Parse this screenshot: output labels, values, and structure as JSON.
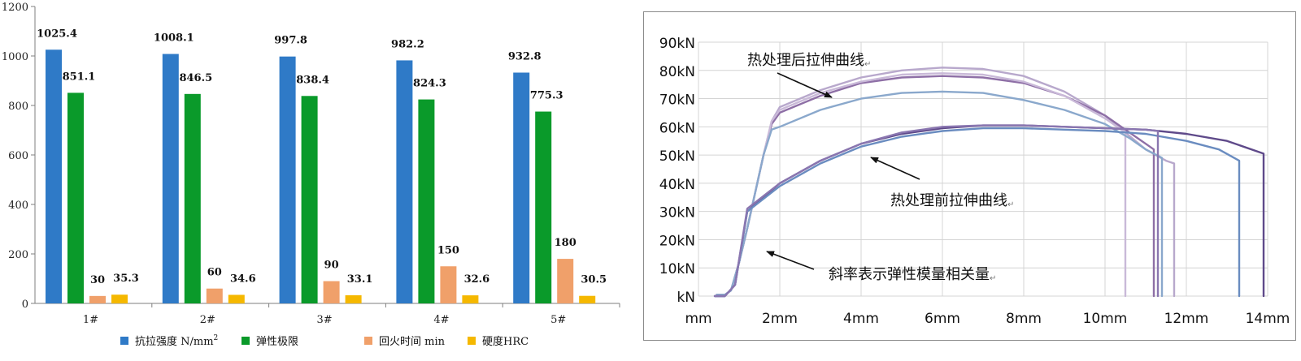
{
  "chart_data": [
    {
      "type": "bar",
      "categories": [
        "1#",
        "2#",
        "3#",
        "4#",
        "5#"
      ],
      "y_ticks": [
        "0",
        "200",
        "400",
        "600",
        "800",
        "1000",
        "1200"
      ],
      "ylim": [
        0,
        1200
      ],
      "series": [
        {
          "name": "抗拉强度 N/mm",
          "name_sup": "2",
          "color": "#2f7ac7",
          "values": [
            1025.4,
            1008.1,
            997.8,
            982.2,
            932.8
          ],
          "labels": [
            "1025.4",
            "1008.1",
            "997.8",
            "982.2",
            "932.8"
          ]
        },
        {
          "name": "弹性极限",
          "color": "#0a9a2a",
          "values": [
            851.1,
            846.5,
            838.4,
            824.3,
            775.3
          ],
          "labels": [
            "851.1",
            "846.5",
            "838.4",
            "824.3",
            "775.3"
          ]
        },
        {
          "name": "回火时间 min",
          "color": "#f0a06a",
          "values": [
            30,
            60,
            90,
            150,
            180
          ],
          "labels": [
            "30",
            "60",
            "90",
            "150",
            "180"
          ]
        },
        {
          "name": "硬度HRC",
          "color": "#f5b800",
          "values": [
            35.3,
            34.6,
            33.1,
            32.6,
            30.5
          ],
          "labels": [
            "35.3",
            "34.6",
            "33.1",
            "32.6",
            "30.5"
          ]
        }
      ],
      "legend_position": "bottom",
      "grid": false
    },
    {
      "type": "line",
      "y_ticks": [
        "kN",
        "10kN",
        "20kN",
        "30kN",
        "40kN",
        "50kN",
        "60kN",
        "70kN",
        "80kN",
        "90kN"
      ],
      "x_ticks": [
        "mm",
        "2mm",
        "4mm",
        "6mm",
        "8mm",
        "10mm",
        "12mm",
        "14mm"
      ],
      "xlim": [
        0,
        14
      ],
      "ylim": [
        0,
        90
      ],
      "grid": true,
      "annotations": [
        {
          "text": "热处理后拉伸曲线",
          "mark": "↵"
        },
        {
          "text": "热处理前拉伸曲线",
          "mark": "↵"
        },
        {
          "text": "斜率表示弹性模量相关量",
          "mark": "↵"
        }
      ],
      "series": [
        {
          "group": "after",
          "color": "#b8a8cc",
          "x": [
            0.45,
            0.65,
            0.8,
            1.0,
            1.2,
            1.4,
            1.6,
            1.8,
            2.0,
            3.0,
            4.0,
            5.0,
            6.0,
            7.0,
            8.0,
            9.0,
            10.0,
            10.5,
            11.0,
            11.5,
            11.7,
            11.7
          ],
          "y": [
            0.5,
            0.5,
            2,
            12,
            24,
            37,
            50,
            62,
            67,
            73,
            77.5,
            80,
            81,
            80.5,
            78,
            72.5,
            64,
            58,
            52,
            48,
            47,
            0
          ]
        },
        {
          "group": "after",
          "color": "#8e6fa6",
          "x": [
            0.45,
            0.65,
            0.8,
            1.0,
            1.2,
            1.4,
            1.6,
            1.8,
            2.0,
            3.0,
            4.0,
            5.0,
            6.0,
            7.0,
            8.0,
            9.0,
            10.0,
            10.6,
            11.0,
            11.2,
            11.2
          ],
          "y": [
            0.5,
            0.5,
            2,
            12,
            24,
            37,
            50,
            61,
            65,
            71,
            75.5,
            77.5,
            78,
            77.5,
            75.5,
            71,
            64,
            58,
            54,
            52,
            0
          ]
        },
        {
          "group": "after",
          "color": "#c9b9d8",
          "x": [
            0.45,
            0.65,
            0.8,
            1.0,
            1.2,
            1.4,
            1.6,
            1.8,
            2.0,
            3.0,
            4.0,
            5.0,
            6.0,
            7.0,
            8.0,
            9.0,
            10.0,
            10.5,
            10.5
          ],
          "y": [
            0.5,
            0.5,
            2,
            12,
            24,
            37,
            50,
            62,
            66,
            72,
            76,
            78.5,
            79,
            78.5,
            76,
            71,
            63,
            58,
            0
          ]
        },
        {
          "group": "after",
          "color": "#8aa8cc",
          "x": [
            0.45,
            0.65,
            0.8,
            1.0,
            1.2,
            1.4,
            1.6,
            1.8,
            2.0,
            3.0,
            4.0,
            5.0,
            6.0,
            7.0,
            8.0,
            9.0,
            10.0,
            10.6,
            11.0,
            11.4,
            11.4
          ],
          "y": [
            0.5,
            0.5,
            2,
            12,
            24,
            37,
            50,
            59,
            60,
            66,
            70,
            72,
            72.5,
            72,
            69.5,
            66,
            61,
            56,
            52,
            49,
            0
          ]
        },
        {
          "group": "before",
          "color": "#5f4a8a",
          "x": [
            0.4,
            0.65,
            0.9,
            1.2,
            2.0,
            3.0,
            4.0,
            5.0,
            6.0,
            7.0,
            8.0,
            9.0,
            10.0,
            11.0,
            12.0,
            13.0,
            13.9,
            13.9
          ],
          "y": [
            0,
            0,
            4,
            30,
            40,
            48,
            54,
            57.5,
            59.5,
            60.5,
            60.5,
            60,
            59.5,
            59,
            57.5,
            55,
            50.5,
            0
          ]
        },
        {
          "group": "before",
          "color": "#6a8cc0",
          "x": [
            0.4,
            0.65,
            0.9,
            1.2,
            2.0,
            3.0,
            4.0,
            5.0,
            6.0,
            7.0,
            8.0,
            9.0,
            10.0,
            11.0,
            12.0,
            12.8,
            13.3,
            13.3
          ],
          "y": [
            0,
            0,
            4,
            30,
            39,
            47,
            53,
            56.5,
            58.5,
            59.5,
            59.5,
            59,
            58.5,
            57.5,
            55,
            52,
            48,
            0
          ]
        },
        {
          "group": "before",
          "color": "#8a76b0",
          "x": [
            0.4,
            0.65,
            0.9,
            1.2,
            2.0,
            3.0,
            4.0,
            5.0,
            6.0,
            7.0,
            8.0,
            9.0,
            10.0,
            11.0,
            11.3,
            11.3
          ],
          "y": [
            0,
            0,
            4,
            31,
            40,
            48,
            54,
            58,
            60,
            60.5,
            60.5,
            60,
            59.5,
            59,
            58.5,
            0
          ]
        }
      ]
    }
  ]
}
